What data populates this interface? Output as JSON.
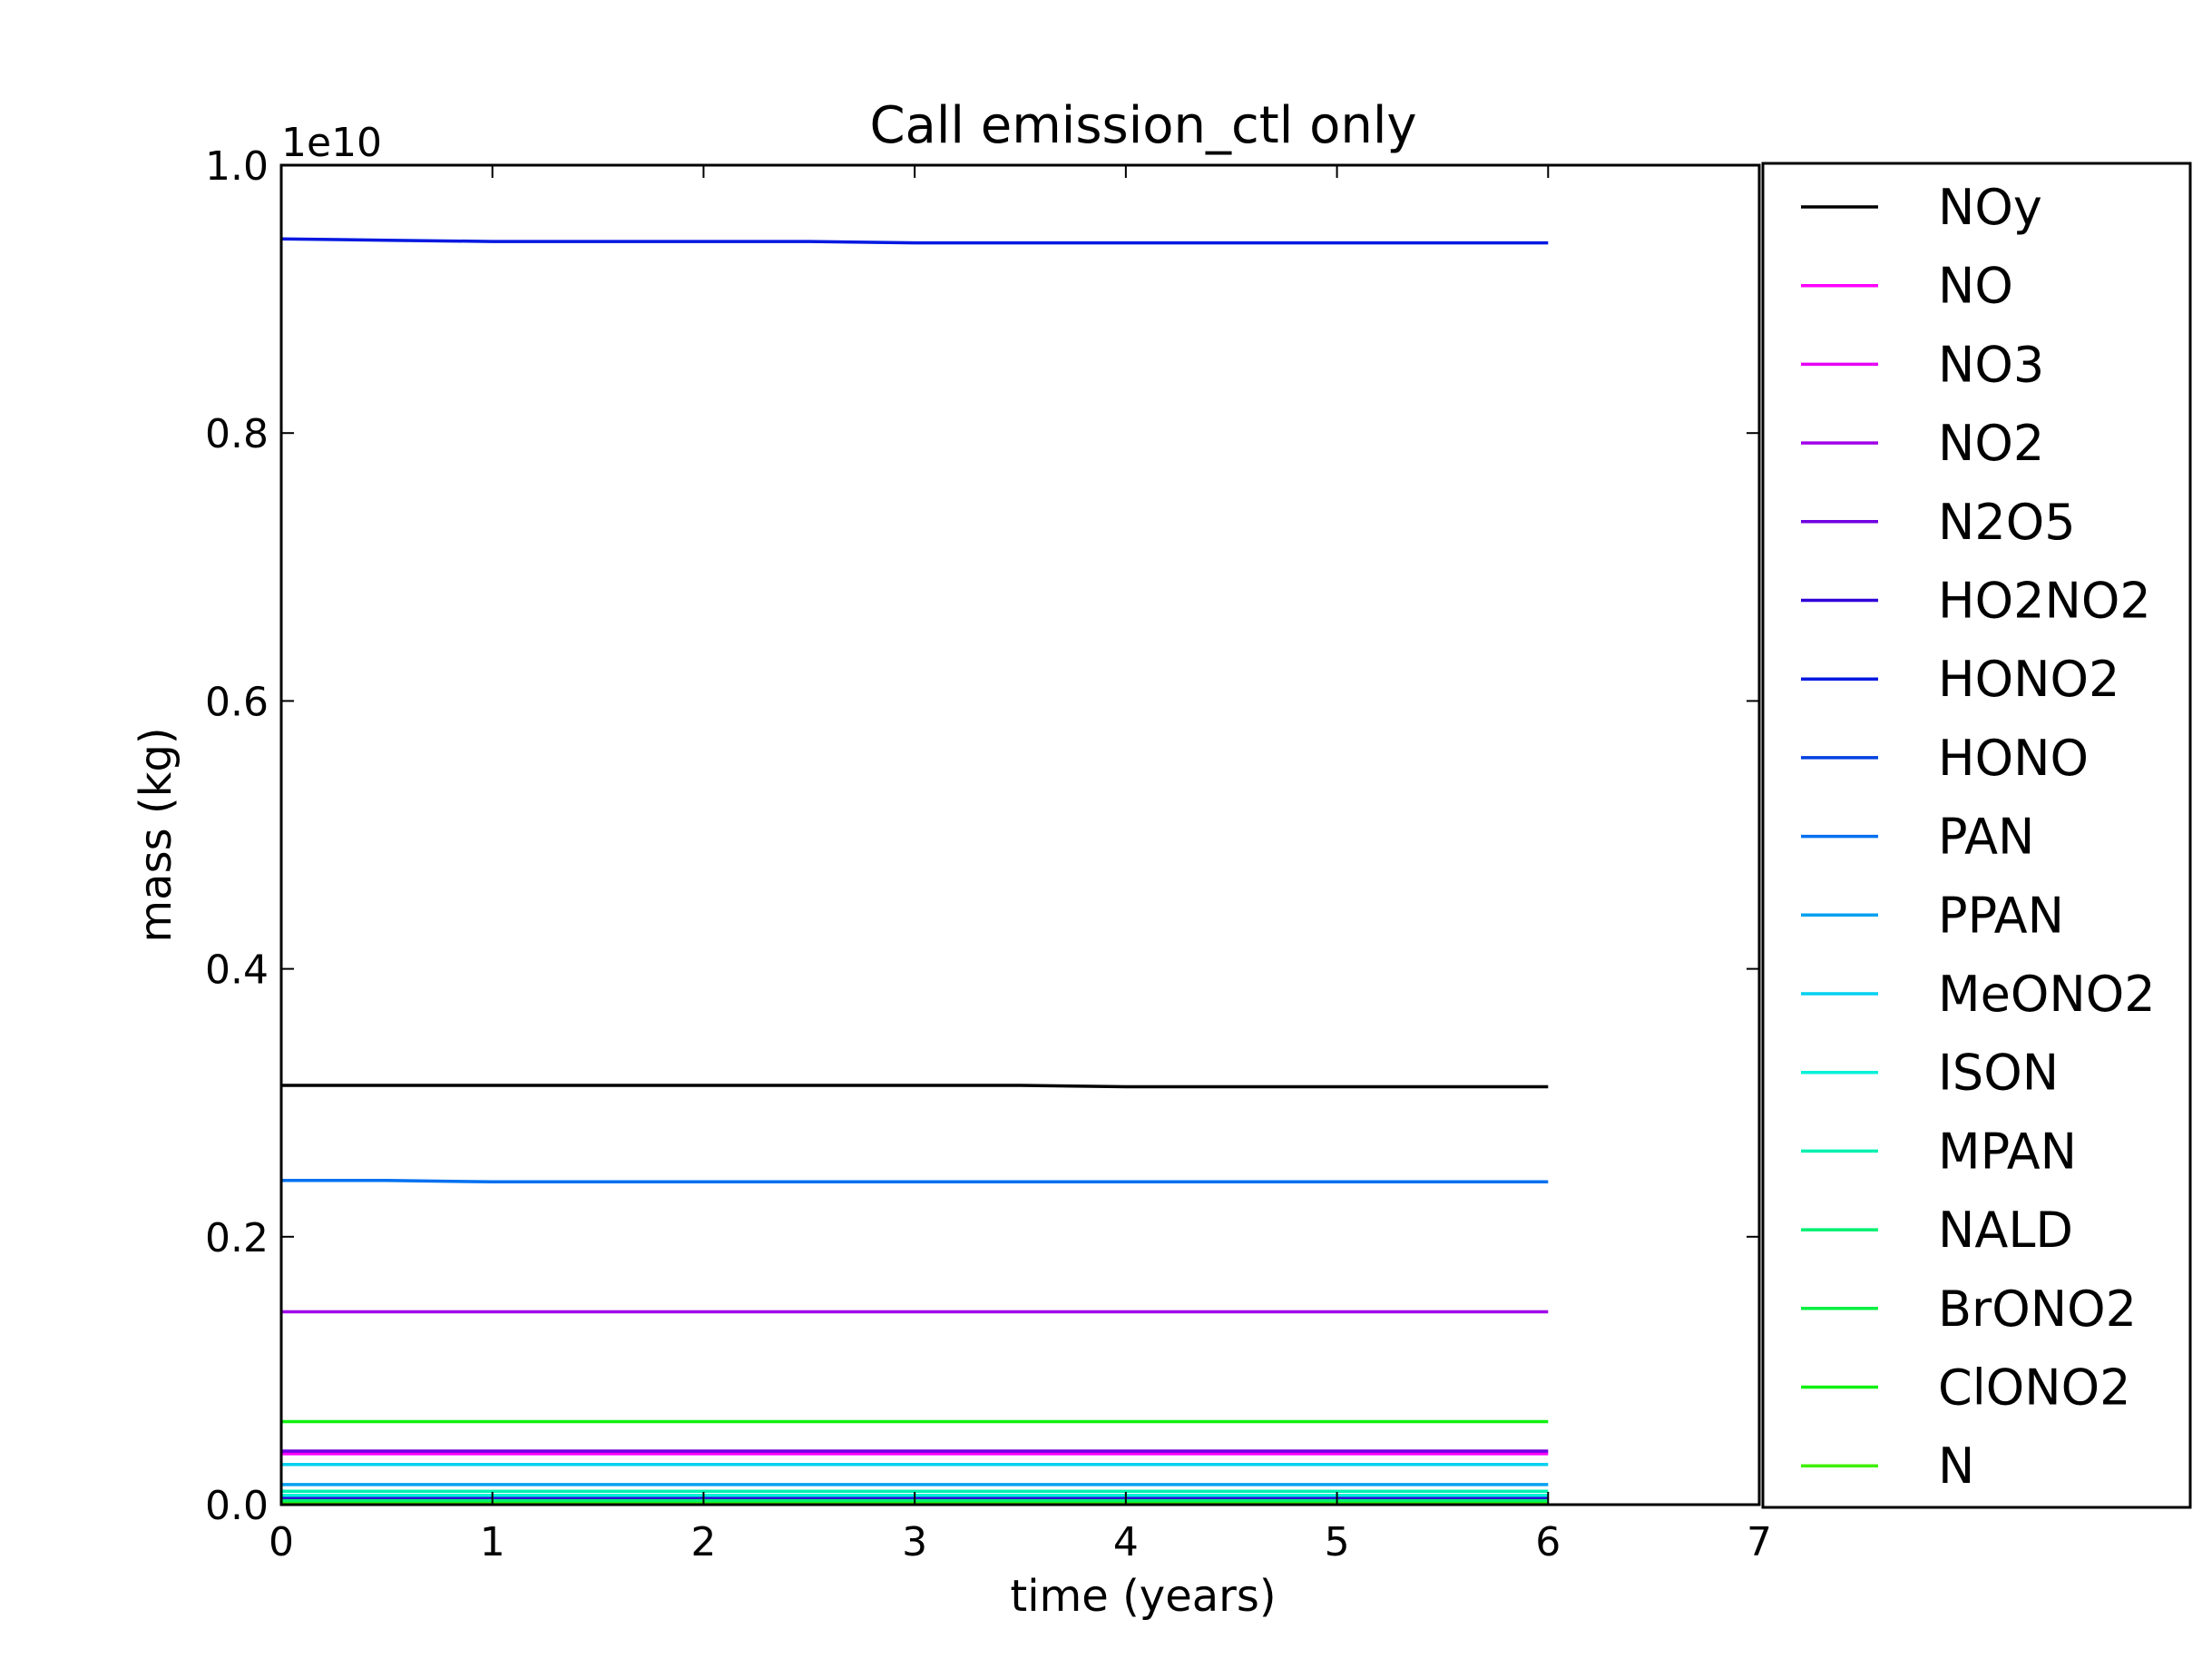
{
  "chart_data": {
    "type": "line",
    "title": "Call emission_ctl only",
    "xlabel": "time (years)",
    "ylabel": "mass (kg)",
    "y_offset_label": "1e10",
    "xlim": [
      0,
      7
    ],
    "ylim": [
      0.0,
      1.0
    ],
    "x_ticks": [
      "0",
      "1",
      "2",
      "3",
      "4",
      "5",
      "6",
      "7"
    ],
    "y_ticks": [
      "0.0",
      "0.2",
      "0.4",
      "0.6",
      "0.8",
      "1.0"
    ],
    "grid": false,
    "legend_position": "right",
    "x": [
      0,
      0.5,
      1,
      1.5,
      2,
      2.5,
      3,
      3.5,
      4,
      4.5,
      5,
      5.5,
      6
    ],
    "series": [
      {
        "name": "NOy",
        "color": "#000000",
        "values": [
          0.313,
          0.313,
          0.313,
          0.313,
          0.313,
          0.313,
          0.313,
          0.313,
          0.312,
          0.312,
          0.312,
          0.312,
          0.312
        ]
      },
      {
        "name": "NO",
        "color": "#ff00ff",
        "values": [
          0.038,
          0.038,
          0.038,
          0.038,
          0.038,
          0.038,
          0.038,
          0.038,
          0.038,
          0.038,
          0.038,
          0.038,
          0.038
        ]
      },
      {
        "name": "NO3",
        "color": "#e600f5",
        "values": [
          0.004,
          0.004,
          0.004,
          0.004,
          0.004,
          0.004,
          0.004,
          0.004,
          0.004,
          0.004,
          0.004,
          0.004,
          0.004
        ]
      },
      {
        "name": "NO2",
        "color": "#a000e8",
        "values": [
          0.144,
          0.144,
          0.144,
          0.144,
          0.144,
          0.144,
          0.144,
          0.144,
          0.144,
          0.144,
          0.144,
          0.144,
          0.144
        ]
      },
      {
        "name": "N2O5",
        "color": "#7000e0",
        "values": [
          0.04,
          0.04,
          0.04,
          0.04,
          0.04,
          0.04,
          0.04,
          0.04,
          0.04,
          0.04,
          0.04,
          0.04,
          0.04
        ]
      },
      {
        "name": "HO2NO2",
        "color": "#3000d8",
        "values": [
          0.005,
          0.005,
          0.005,
          0.005,
          0.005,
          0.005,
          0.005,
          0.005,
          0.005,
          0.005,
          0.005,
          0.005,
          0.005
        ]
      },
      {
        "name": "HONO2",
        "color": "#0018e0",
        "values": [
          0.945,
          0.944,
          0.943,
          0.943,
          0.943,
          0.943,
          0.942,
          0.942,
          0.942,
          0.942,
          0.942,
          0.942,
          0.942
        ]
      },
      {
        "name": "HONO",
        "color": "#0040e0",
        "values": [
          0.002,
          0.002,
          0.002,
          0.002,
          0.002,
          0.002,
          0.002,
          0.002,
          0.002,
          0.002,
          0.002,
          0.002,
          0.002
        ]
      },
      {
        "name": "PAN",
        "color": "#0070f0",
        "values": [
          0.242,
          0.242,
          0.241,
          0.241,
          0.241,
          0.241,
          0.241,
          0.241,
          0.241,
          0.241,
          0.241,
          0.241,
          0.241
        ]
      },
      {
        "name": "PPAN",
        "color": "#00a0f0",
        "values": [
          0.015,
          0.015,
          0.015,
          0.015,
          0.015,
          0.015,
          0.015,
          0.015,
          0.015,
          0.015,
          0.015,
          0.015,
          0.015
        ]
      },
      {
        "name": "MeONO2",
        "color": "#00d0f0",
        "values": [
          0.03,
          0.03,
          0.03,
          0.03,
          0.03,
          0.03,
          0.03,
          0.03,
          0.03,
          0.03,
          0.03,
          0.03,
          0.03
        ]
      },
      {
        "name": "ISON",
        "color": "#00f0d8",
        "values": [
          0.007,
          0.007,
          0.007,
          0.007,
          0.007,
          0.007,
          0.007,
          0.007,
          0.007,
          0.007,
          0.007,
          0.007,
          0.007
        ]
      },
      {
        "name": "MPAN",
        "color": "#00f0b0",
        "values": [
          0.01,
          0.01,
          0.01,
          0.01,
          0.01,
          0.01,
          0.01,
          0.01,
          0.01,
          0.01,
          0.01,
          0.01,
          0.01
        ]
      },
      {
        "name": "NALD",
        "color": "#00f070",
        "values": [
          0.003,
          0.003,
          0.003,
          0.003,
          0.003,
          0.003,
          0.003,
          0.003,
          0.003,
          0.003,
          0.003,
          0.003,
          0.003
        ]
      },
      {
        "name": "BrONO2",
        "color": "#00f040",
        "values": [
          0.001,
          0.001,
          0.001,
          0.001,
          0.001,
          0.001,
          0.001,
          0.001,
          0.001,
          0.001,
          0.001,
          0.001,
          0.001
        ]
      },
      {
        "name": "ClONO2",
        "color": "#10f010",
        "values": [
          0.062,
          0.062,
          0.062,
          0.062,
          0.062,
          0.062,
          0.062,
          0.062,
          0.062,
          0.062,
          0.062,
          0.062,
          0.062
        ]
      },
      {
        "name": "N",
        "color": "#40f000",
        "values": [
          0.0005,
          0.0005,
          0.0005,
          0.0005,
          0.0005,
          0.0005,
          0.0005,
          0.0005,
          0.0005,
          0.0005,
          0.0005,
          0.0005,
          0.0005
        ]
      }
    ]
  }
}
